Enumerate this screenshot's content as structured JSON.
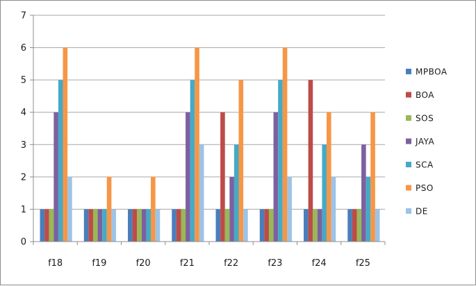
{
  "chart_data": {
    "type": "bar",
    "title": "",
    "xlabel": "",
    "ylabel": "",
    "ylim": [
      0,
      7
    ],
    "yticks": [
      0,
      1,
      2,
      3,
      4,
      5,
      6,
      7
    ],
    "grid": true,
    "legend_position": "right",
    "categories": [
      "f18",
      "f19",
      "f20",
      "f21",
      "f22",
      "f23",
      "f24",
      "f25"
    ],
    "series": [
      {
        "name": "MPBOA",
        "color": "#4a7ebb",
        "values": [
          1,
          1,
          1,
          1,
          1,
          1,
          1,
          1
        ]
      },
      {
        "name": "BOA",
        "color": "#be4b48",
        "values": [
          1,
          1,
          1,
          1,
          4,
          1,
          5,
          1
        ]
      },
      {
        "name": "SOS",
        "color": "#98b954",
        "values": [
          1,
          1,
          1,
          1,
          1,
          1,
          1,
          1
        ]
      },
      {
        "name": "JAYA",
        "color": "#7d60a0",
        "values": [
          4,
          1,
          1,
          4,
          2,
          4,
          1,
          3
        ]
      },
      {
        "name": "SCA",
        "color": "#46aac5",
        "values": [
          5,
          1,
          1,
          5,
          3,
          5,
          3,
          2
        ]
      },
      {
        "name": "PSO",
        "color": "#f79646",
        "values": [
          6,
          2,
          2,
          6,
          5,
          6,
          4,
          4
        ]
      },
      {
        "name": "DE",
        "color": "#9dc3e6",
        "values": [
          2,
          1,
          1,
          3,
          1,
          2,
          2,
          1
        ]
      }
    ]
  }
}
